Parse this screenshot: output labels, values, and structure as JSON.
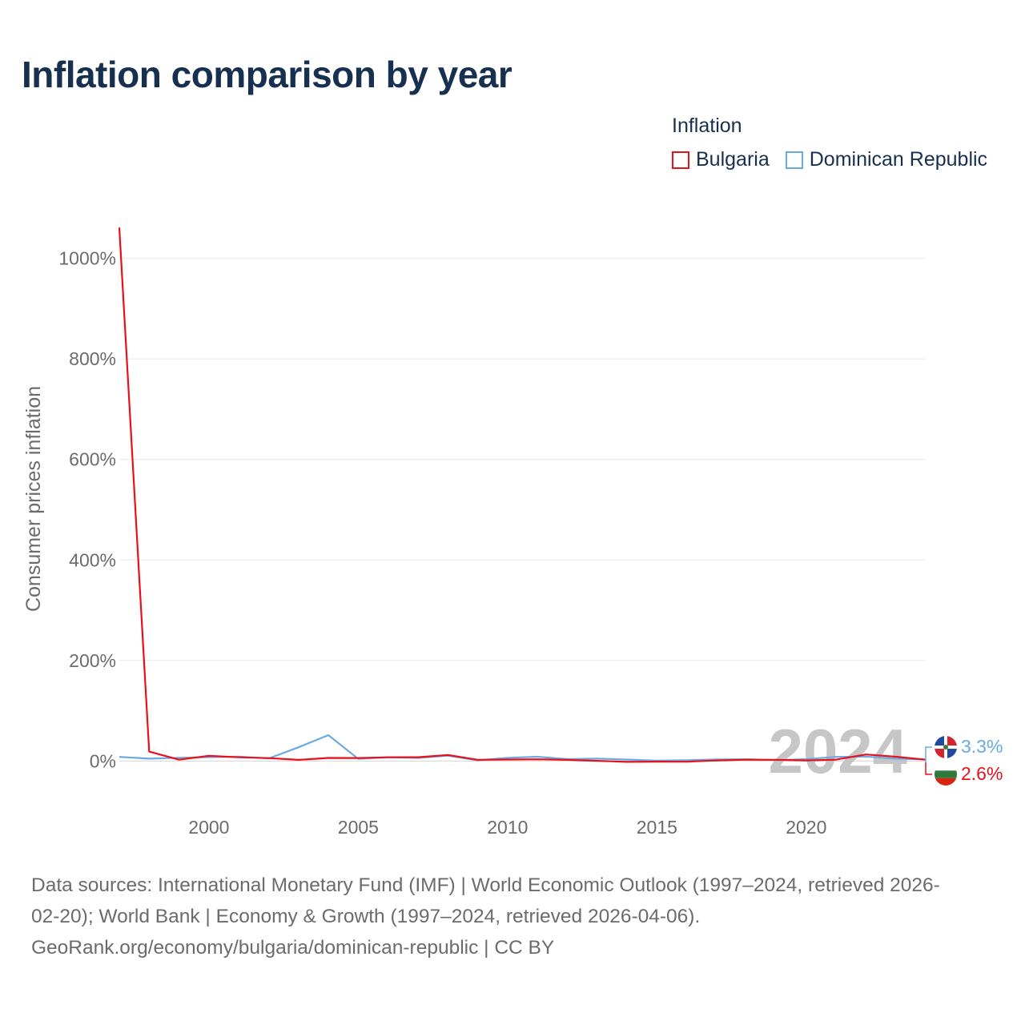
{
  "title": "Inflation comparison by year",
  "legend": {
    "title": "Inflation",
    "items": [
      {
        "label": "Bulgaria",
        "color": "#e8101b"
      },
      {
        "label": "Dominican Republic",
        "color": "#6aaae4"
      }
    ]
  },
  "chart_data": {
    "type": "line",
    "title": "Inflation comparison by year",
    "xlabel": "",
    "ylabel": "Consumer prices inflation",
    "xlim": [
      1997,
      2024
    ],
    "ylim": [
      -95,
      1060
    ],
    "yticks": [
      0,
      200,
      400,
      600,
      800,
      1000
    ],
    "ytick_labels": [
      "0%",
      "200%",
      "400%",
      "600%",
      "800%",
      "1000%"
    ],
    "xticks": [
      2000,
      2005,
      2010,
      2015,
      2020
    ],
    "xtick_labels": [
      "2000",
      "2005",
      "2010",
      "2015",
      "2020"
    ],
    "grid": true,
    "legend_position": "top-right",
    "watermark_year": "2024",
    "x": [
      1997,
      1998,
      1999,
      2000,
      2001,
      2002,
      2003,
      2004,
      2005,
      2006,
      2007,
      2008,
      2009,
      2010,
      2011,
      2012,
      2013,
      2014,
      2015,
      2016,
      2017,
      2018,
      2019,
      2020,
      2021,
      2022,
      2023,
      2024
    ],
    "series": [
      {
        "name": "Bulgaria",
        "color": "#e8101b",
        "values": [
          1061.2,
          18.7,
          2.6,
          10.3,
          7.4,
          5.8,
          2.3,
          6.1,
          6.0,
          7.4,
          7.6,
          12.0,
          2.5,
          3.0,
          3.4,
          2.4,
          0.4,
          -1.6,
          -1.1,
          -1.3,
          1.2,
          2.6,
          2.5,
          1.2,
          2.8,
          13.0,
          8.6,
          2.6
        ],
        "end_label": "2.6%"
      },
      {
        "name": "Dominican Republic",
        "color": "#6aaae4",
        "values": [
          8.3,
          4.8,
          6.5,
          7.7,
          8.9,
          5.2,
          27.4,
          51.5,
          4.2,
          7.6,
          6.1,
          10.6,
          1.4,
          6.3,
          8.5,
          3.7,
          4.8,
          3.0,
          0.8,
          1.6,
          3.3,
          3.6,
          1.8,
          3.8,
          8.2,
          8.8,
          4.8,
          3.3
        ],
        "end_label": "3.3%"
      }
    ]
  },
  "source": {
    "lines": [
      "Data sources: International Monetary Fund (IMF) | World Economic Outlook (1997–2024, retrieved 2026-",
      "02-20); World Bank | Economy & Growth (1997–2024, retrieved 2026-04-06).",
      "GeoRank.org/economy/bulgaria/dominican-republic | CC BY"
    ]
  }
}
